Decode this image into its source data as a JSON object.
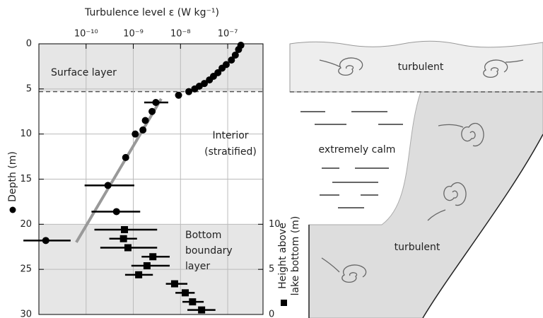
{
  "chart_data": {
    "type": "scatter",
    "title": "Turbulence level ε (W kg⁻¹)",
    "y_label": "Depth (m)",
    "y2_label_lines": [
      "Height above",
      "lake bottom (m)"
    ],
    "xscale": "log",
    "xlim": [
      1e-11,
      5.6e-07
    ],
    "xticks": [
      {
        "value": 1e-10,
        "label": "10⁻¹⁰"
      },
      {
        "value": 1e-09,
        "label": "10⁻⁹"
      },
      {
        "value": 1e-08,
        "label": "10⁻⁸"
      },
      {
        "value": 1e-07,
        "label": "10⁻⁷"
      }
    ],
    "ylim": [
      0,
      30
    ],
    "y_inverted": true,
    "yticks": [
      0,
      5,
      10,
      15,
      20,
      25,
      30
    ],
    "y2lim": [
      0,
      30
    ],
    "y2ticks": [
      0,
      5,
      10
    ],
    "grid": true,
    "shaded_depths": [
      [
        0,
        5.3
      ],
      [
        20,
        30
      ]
    ],
    "dashed_depth": 5.3,
    "annotations": [
      "Surface layer",
      "Interior",
      "(stratified)",
      "Bottom",
      "boundary",
      "layer"
    ],
    "fit": {
      "color": "#999999",
      "x": [
        6.2e-11,
        3.9e-09
      ],
      "y": [
        22,
        6.1
      ]
    },
    "series": [
      {
        "marker": "circle",
        "color": "#000000",
        "x": [
          1.9e-07,
          1.7e-07,
          1.45e-07,
          1.2e-07,
          9.3e-08,
          7.6e-08,
          6.2e-08,
          5e-08,
          4.1e-08,
          3.2e-08,
          2.5e-08,
          2e-08,
          1.5e-08,
          9.1e-09,
          3e-09,
          2.5e-09,
          1.8e-09,
          1.6e-09,
          1.1e-09,
          6.9e-10,
          2.9e-10,
          4.4e-10,
          1.4e-11
        ],
        "y": [
          0.16,
          0.63,
          1.25,
          1.8,
          2.3,
          2.7,
          3.2,
          3.6,
          4.0,
          4.4,
          4.7,
          5.0,
          5.3,
          5.7,
          6.5,
          7.5,
          8.5,
          9.55,
          10.0,
          12.6,
          15.7,
          18.6,
          21.8
        ],
        "x_lo": [
          null,
          null,
          null,
          null,
          null,
          null,
          null,
          null,
          null,
          null,
          null,
          null,
          null,
          null,
          1.7e-09,
          null,
          null,
          null,
          null,
          null,
          9.3e-11,
          1.3e-10,
          4.7e-12
        ],
        "x_hi": [
          null,
          null,
          null,
          null,
          null,
          null,
          null,
          null,
          null,
          null,
          null,
          null,
          null,
          null,
          5.5e-09,
          null,
          null,
          null,
          null,
          null,
          1.05e-09,
          1.4e-09,
          4.7e-11
        ]
      },
      {
        "marker": "square",
        "color": "#000000",
        "axis": "y2",
        "x": [
          6.5e-10,
          6.2e-10,
          7.7e-10,
          2.6e-09,
          1.95e-09,
          1.3e-09,
          7.5e-09,
          1.26e-08,
          1.8e-08,
          2.8e-08
        ],
        "y": [
          9.4,
          8.4,
          7.4,
          6.4,
          5.4,
          4.4,
          3.4,
          2.4,
          1.4,
          0.5
        ],
        "x_lo": [
          1.5e-10,
          3.1e-10,
          2e-10,
          1.5e-09,
          9.1e-10,
          6.7e-10,
          4.9e-09,
          7.8e-09,
          1.1e-08,
          1.4e-08
        ],
        "x_hi": [
          3.2e-09,
          1.2e-09,
          3.2e-09,
          5.9e-09,
          5.9e-09,
          2.6e-09,
          1.4e-08,
          2e-08,
          3.1e-08,
          5.5e-08
        ]
      }
    ]
  },
  "diagram": {
    "labels": [
      "turbulent",
      "extremely calm",
      "turbulent"
    ]
  }
}
